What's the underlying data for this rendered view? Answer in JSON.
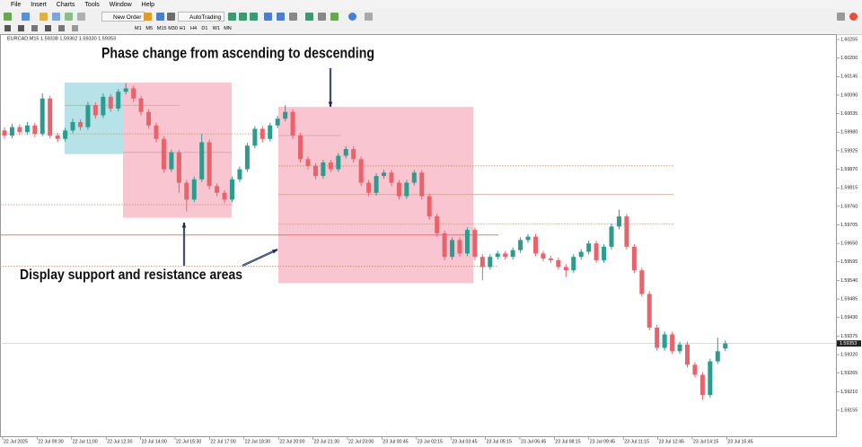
{
  "menu": [
    "File",
    "Insert",
    "Charts",
    "Tools",
    "Window",
    "Help"
  ],
  "toolbar": {
    "new_order": "New Order",
    "auto_trading": "AutoTrading"
  },
  "timeframes": [
    "M1",
    "M5",
    "M15",
    "M30",
    "H1",
    "H4",
    "D1",
    "W1",
    "MN"
  ],
  "chart_data": {
    "type": "candlestick",
    "header": "EURCAD,M15  1.59338 1.59362 1.59330 1.59353",
    "annotations": [
      "Phase change from ascending to descending",
      "Display support and resistance areas"
    ],
    "up_color": "#2a9d8f",
    "down_color": "#e8636b",
    "ylim": [
      1.59155,
      1.60255
    ],
    "yticks": [
      1.60255,
      {
        "value": 1.602,
        "label": "1.60200"
      },
      1.60145,
      {
        "value": 1.6009,
        "label": "1.60090"
      },
      1.60035,
      {
        "value": 1.5998,
        "label": "1.59980"
      },
      1.59925,
      {
        "value": 1.5987,
        "label": "1.59870"
      },
      1.59815,
      {
        "value": 1.5976,
        "label": "1.59760"
      },
      1.59705,
      {
        "value": 1.5965,
        "label": "1.59650"
      },
      1.59595,
      {
        "value": 1.5954,
        "label": "1.59540"
      },
      1.59485,
      {
        "value": 1.5943,
        "label": "1.59430"
      },
      1.59375,
      {
        "value": 1.5932,
        "label": "1.59320"
      },
      1.59265,
      {
        "value": 1.5921,
        "label": "1.59210"
      },
      1.59155
    ],
    "current_price": 1.59353,
    "time_labels": [
      "22 Jul 2025",
      "22 Jul 09:30",
      "22 Jul 11:00",
      "22 Jul 12:30",
      "22 Jul 14:00",
      "22 Jul 15:30",
      "22 Jul 17:00",
      "22 Jul 18:30",
      "22 Jul 20:00",
      "22 Jul 21:30",
      "22 Jul 23:00",
      "23 Jul 00:45",
      "23 Jul 02:15",
      "23 Jul 03:45",
      "23 Jul 05:15",
      "23 Jul 06:45",
      "23 Jul 08:15",
      "23 Jul 09:45",
      "23 Jul 11:15",
      "23 Jul 12:45",
      "23 Jul 14:15",
      "23 Jul 15:45"
    ],
    "zones": [
      {
        "top": 1.60127,
        "bottom": 1.59915,
        "color": "#b3e0e6"
      },
      {
        "top": 1.60127,
        "bottom": 1.59726,
        "color": "#f9c2cd"
      },
      {
        "top": 1.60055,
        "bottom": 1.59532,
        "color": "#f9c2cd"
      }
    ],
    "levels": [
      {
        "price": 1.59675,
        "color": "#e8636b",
        "style": "solid"
      },
      {
        "price": 1.59795,
        "color": "#d4a59a",
        "style": "solid"
      },
      {
        "price": 1.5988,
        "color": "#c9896b",
        "style": "dotted"
      },
      {
        "price": 1.59707,
        "color": "#c9896b",
        "style": "dotted"
      },
      {
        "price": 1.59582,
        "color": "#c9896b",
        "style": "dotted"
      },
      {
        "price": 1.59975,
        "color": "#c9896b",
        "style": "dotted"
      },
      {
        "price": 1.59765,
        "color": "#c9896b",
        "style": "dotted"
      }
    ],
    "candles": [
      [
        1.59985,
        1.59995,
        1.5996,
        1.5997
      ],
      [
        1.5997,
        1.60005,
        1.59962,
        1.59995
      ],
      [
        1.59995,
        1.60003,
        1.59972,
        1.5998
      ],
      [
        1.5998,
        1.6001,
        1.59972,
        1.6
      ],
      [
        1.6,
        1.60008,
        1.59965,
        1.59975
      ],
      [
        1.59975,
        1.60095,
        1.59968,
        1.6008
      ],
      [
        1.6008,
        1.60088,
        1.59962,
        1.5997
      ],
      [
        1.5997,
        1.59978,
        1.5995,
        1.5996
      ],
      [
        1.5996,
        1.59993,
        1.59952,
        1.59985
      ],
      [
        1.59985,
        1.6002,
        1.59977,
        1.6001
      ],
      [
        1.6001,
        1.60018,
        1.59985,
        1.59995
      ],
      [
        1.59995,
        1.6007,
        1.59987,
        1.6006
      ],
      [
        1.6006,
        1.60068,
        1.6002,
        1.6003
      ],
      [
        1.6003,
        1.60095,
        1.60022,
        1.60085
      ],
      [
        1.60085,
        1.60093,
        1.6004,
        1.6005
      ],
      [
        1.6005,
        1.60108,
        1.60042,
        1.601
      ],
      [
        1.601,
        1.60125,
        1.60092,
        1.6011
      ],
      [
        1.6011,
        1.60118,
        1.6007,
        1.6008
      ],
      [
        1.6008,
        1.60088,
        1.6003,
        1.6004
      ],
      [
        1.6004,
        1.60048,
        1.5999,
        1.6
      ],
      [
        1.6,
        1.60008,
        1.5995,
        1.5996
      ],
      [
        1.5996,
        1.59968,
        1.5986,
        1.5987
      ],
      [
        1.5987,
        1.59928,
        1.59862,
        1.5992
      ],
      [
        1.5992,
        1.59928,
        1.598,
        1.5983
      ],
      [
        1.5983,
        1.59838,
        1.59745,
        1.5978
      ],
      [
        1.5978,
        1.59848,
        1.59772,
        1.5984
      ],
      [
        1.5984,
        1.59975,
        1.59832,
        1.5995
      ],
      [
        1.5995,
        1.59958,
        1.5981,
        1.5982
      ],
      [
        1.5982,
        1.59828,
        1.5979,
        1.598
      ],
      [
        1.598,
        1.59808,
        1.5977,
        1.5978
      ],
      [
        1.5978,
        1.59848,
        1.59772,
        1.5984
      ],
      [
        1.5984,
        1.59878,
        1.59832,
        1.5987
      ],
      [
        1.5987,
        1.59948,
        1.59862,
        1.5994
      ],
      [
        1.5994,
        1.59998,
        1.59932,
        1.5999
      ],
      [
        1.5999,
        1.59998,
        1.5995,
        1.5996
      ],
      [
        1.5996,
        1.60008,
        1.59952,
        1.6
      ],
      [
        1.6,
        1.60028,
        1.59992,
        1.6002
      ],
      [
        1.6002,
        1.6006,
        1.60012,
        1.6004
      ],
      [
        1.6004,
        1.60048,
        1.5996,
        1.5997
      ],
      [
        1.5997,
        1.59978,
        1.5989,
        1.599
      ],
      [
        1.599,
        1.59908,
        1.5987,
        1.5988
      ],
      [
        1.5988,
        1.59888,
        1.5984,
        1.5985
      ],
      [
        1.5985,
        1.59898,
        1.59842,
        1.5989
      ],
      [
        1.5989,
        1.59898,
        1.59862,
        1.5987
      ],
      [
        1.5987,
        1.59918,
        1.59862,
        1.5991
      ],
      [
        1.5991,
        1.59938,
        1.59902,
        1.5993
      ],
      [
        1.5993,
        1.59938,
        1.5989,
        1.599
      ],
      [
        1.599,
        1.59908,
        1.5982,
        1.5983
      ],
      [
        1.5983,
        1.59838,
        1.5979,
        1.598
      ],
      [
        1.598,
        1.59858,
        1.59792,
        1.5985
      ],
      [
        1.5985,
        1.59868,
        1.59842,
        1.5986
      ],
      [
        1.5986,
        1.59868,
        1.5982,
        1.5983
      ],
      [
        1.5983,
        1.59838,
        1.5978,
        1.5979
      ],
      [
        1.5979,
        1.59838,
        1.59782,
        1.5983
      ],
      [
        1.5983,
        1.59868,
        1.59822,
        1.5986
      ],
      [
        1.5986,
        1.59868,
        1.5978,
        1.5979
      ],
      [
        1.5979,
        1.59798,
        1.5972,
        1.5973
      ],
      [
        1.5973,
        1.59738,
        1.5967,
        1.5968
      ],
      [
        1.5968,
        1.59688,
        1.596,
        1.5961
      ],
      [
        1.5961,
        1.59668,
        1.59602,
        1.5966
      ],
      [
        1.5966,
        1.59668,
        1.5961,
        1.5962
      ],
      [
        1.5962,
        1.59698,
        1.59612,
        1.5969
      ],
      [
        1.5969,
        1.59698,
        1.596,
        1.5961
      ],
      [
        1.5961,
        1.59618,
        1.5954,
        1.5958
      ],
      [
        1.5958,
        1.59618,
        1.59572,
        1.5961
      ],
      [
        1.5961,
        1.59628,
        1.59602,
        1.5962
      ],
      [
        1.5962,
        1.59628,
        1.59602,
        1.5961
      ],
      [
        1.5961,
        1.59638,
        1.59602,
        1.5963
      ],
      [
        1.5963,
        1.59668,
        1.59622,
        1.5966
      ],
      [
        1.5966,
        1.59678,
        1.59652,
        1.5967
      ],
      [
        1.5967,
        1.59678,
        1.59612,
        1.5962
      ],
      [
        1.5962,
        1.59628,
        1.59597,
        1.59605
      ],
      [
        1.59605,
        1.59613,
        1.59592,
        1.596
      ],
      [
        1.596,
        1.59608,
        1.59572,
        1.5958
      ],
      [
        1.5958,
        1.59588,
        1.5955,
        1.5957
      ],
      [
        1.5957,
        1.59618,
        1.59562,
        1.5961
      ],
      [
        1.5961,
        1.59633,
        1.59602,
        1.59625
      ],
      [
        1.59625,
        1.59658,
        1.59617,
        1.5965
      ],
      [
        1.5965,
        1.59658,
        1.59592,
        1.596
      ],
      [
        1.596,
        1.59648,
        1.59592,
        1.5964
      ],
      [
        1.5964,
        1.59708,
        1.59632,
        1.597
      ],
      [
        1.597,
        1.5975,
        1.59692,
        1.5973
      ],
      [
        1.5973,
        1.59738,
        1.59632,
        1.5964
      ],
      [
        1.5964,
        1.59648,
        1.59562,
        1.5957
      ],
      [
        1.5957,
        1.59578,
        1.59492,
        1.595
      ],
      [
        1.595,
        1.59508,
        1.59392,
        1.594
      ],
      [
        1.594,
        1.59408,
        1.59332,
        1.5934
      ],
      [
        1.5934,
        1.59388,
        1.59332,
        1.5938
      ],
      [
        1.5938,
        1.59388,
        1.59322,
        1.5933
      ],
      [
        1.5933,
        1.59358,
        1.59322,
        1.5935
      ],
      [
        1.5935,
        1.59358,
        1.59282,
        1.5929
      ],
      [
        1.5929,
        1.59298,
        1.59252,
        1.5926
      ],
      [
        1.5926,
        1.59268,
        1.59185,
        1.592
      ],
      [
        1.592,
        1.59308,
        1.59192,
        1.593
      ],
      [
        1.593,
        1.5937,
        1.59292,
        1.5933
      ],
      [
        1.59338,
        1.59362,
        1.5933,
        1.59353
      ]
    ]
  }
}
